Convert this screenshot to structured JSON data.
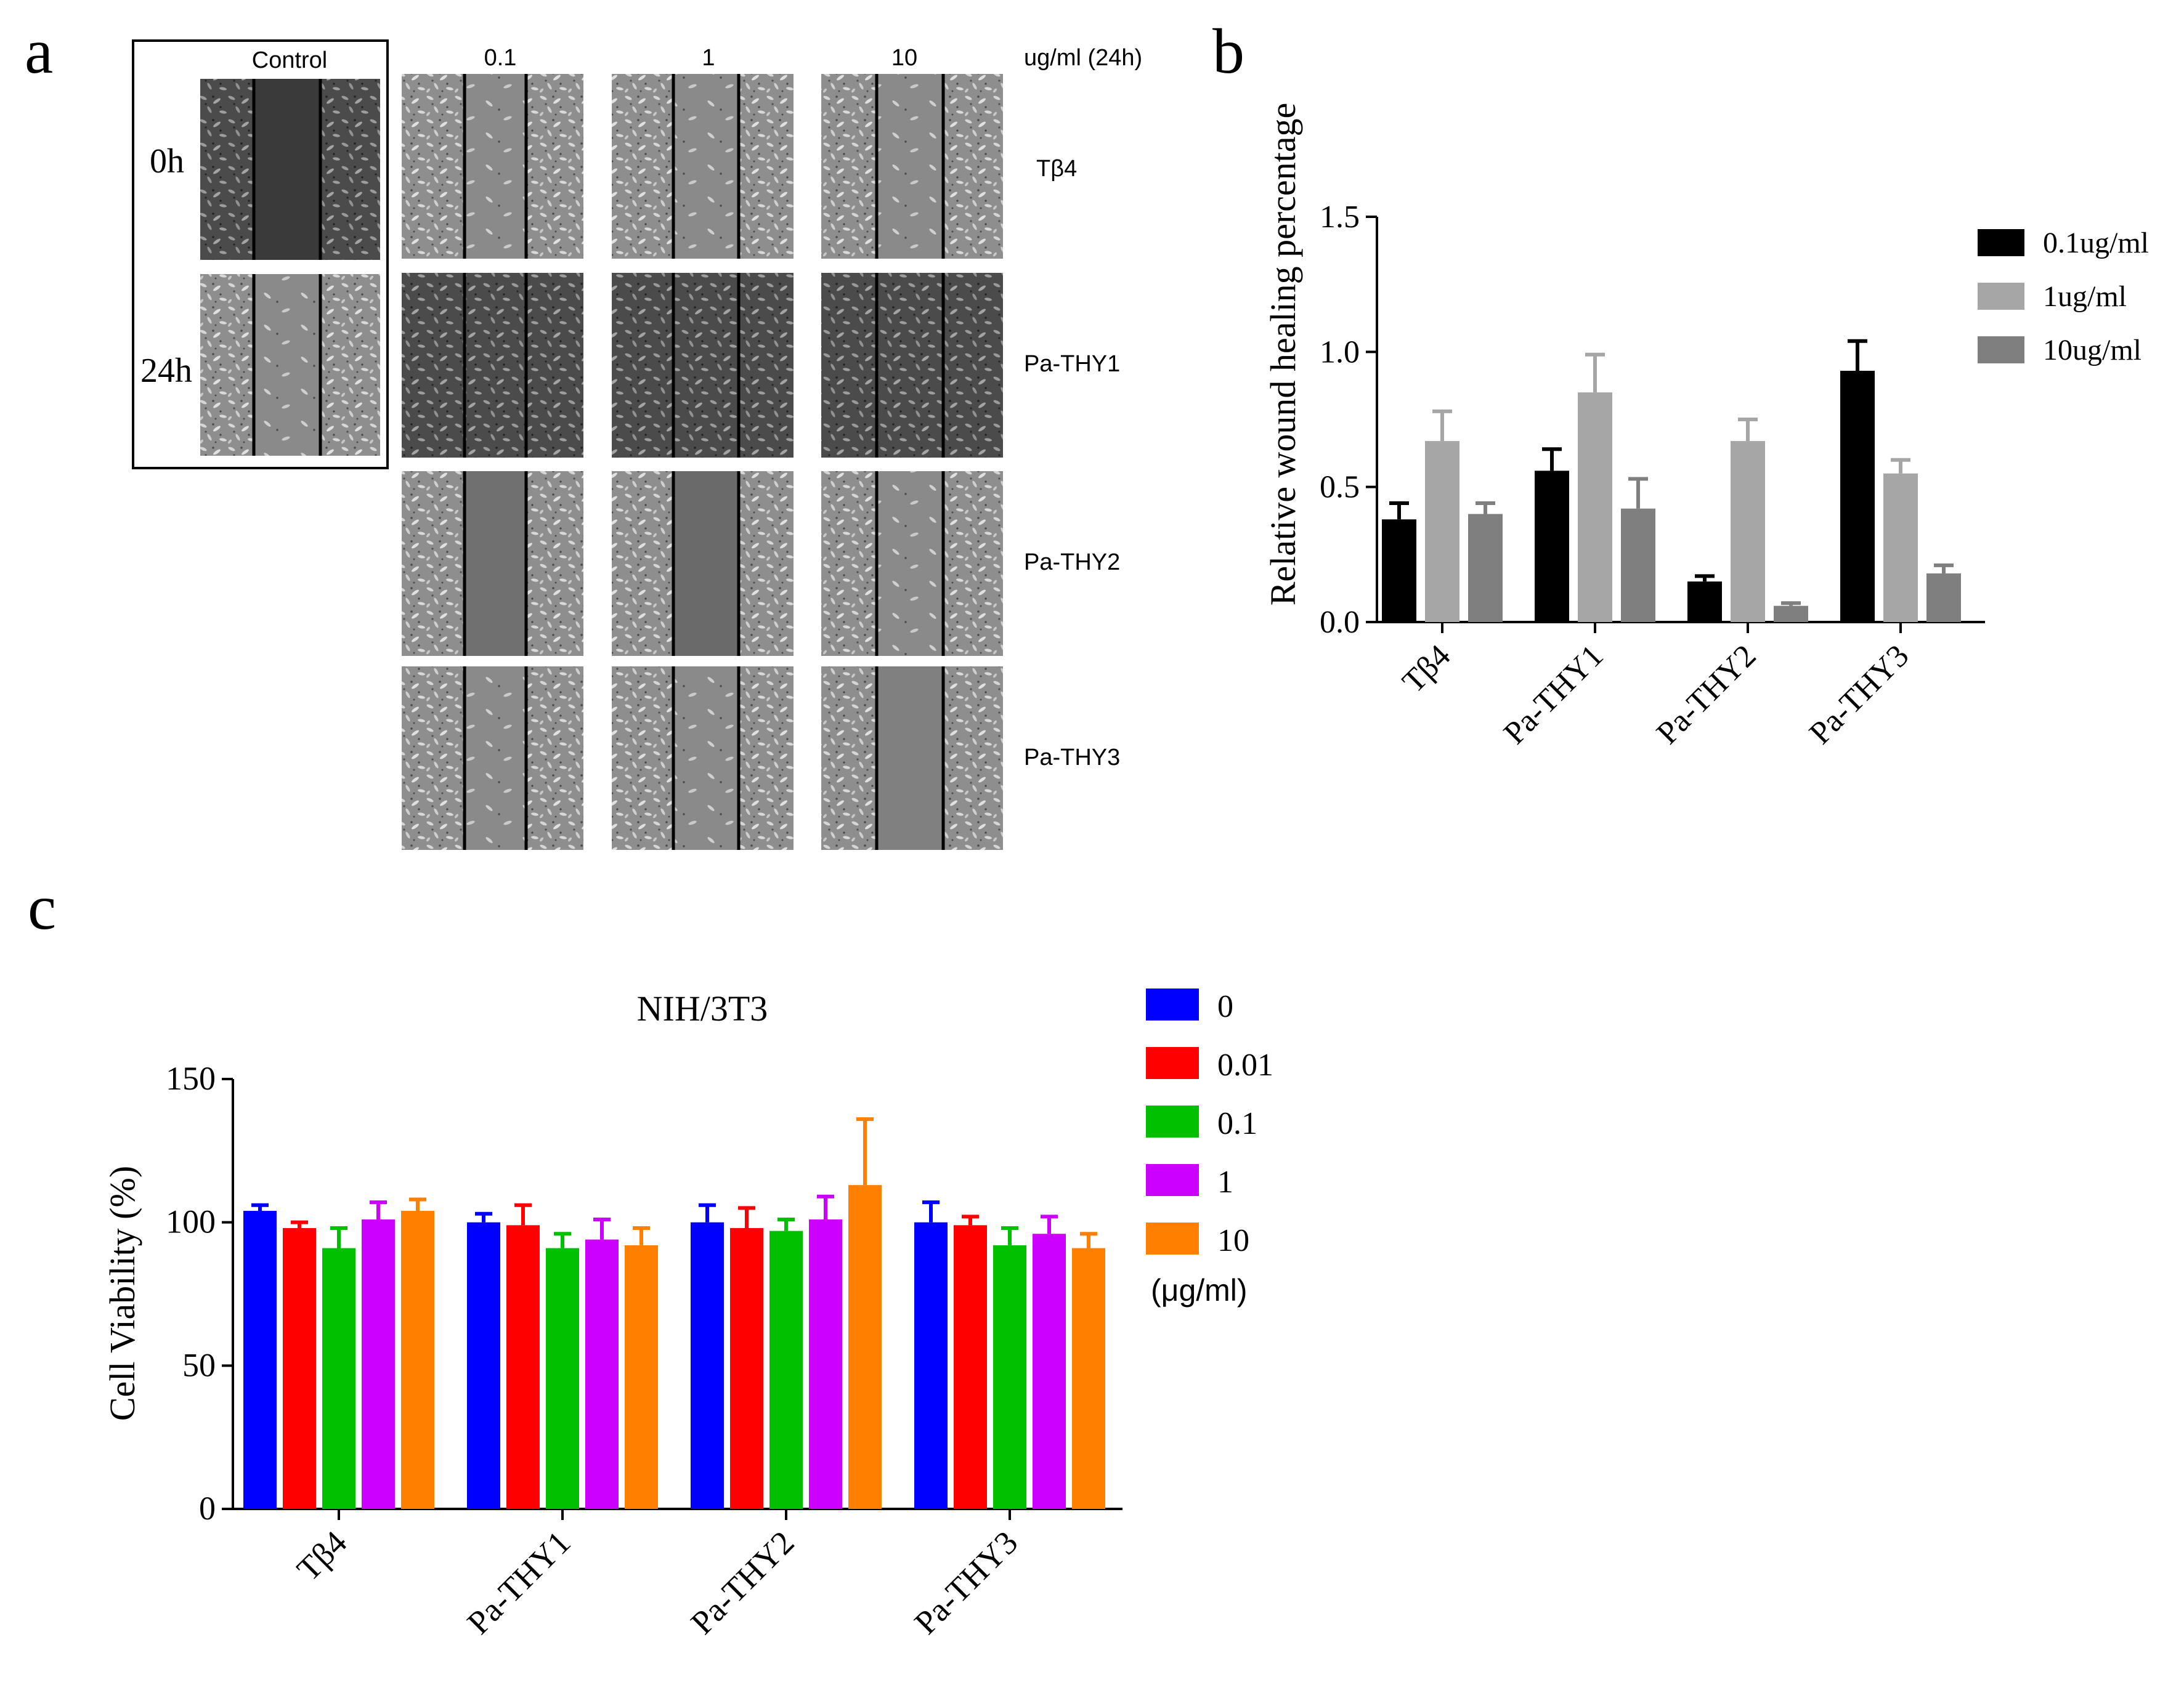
{
  "panel_a": {
    "letter": "a",
    "control_label": "Control",
    "time_labels": [
      "0h",
      "24h"
    ],
    "concentration_headers": [
      "0.1",
      "1",
      "10"
    ],
    "unit_label": "ug/ml (24h)",
    "row_labels": [
      "Tβ4",
      "Pa-THY1",
      "Pa-THY2",
      "Pa-THY3"
    ]
  },
  "panel_b": {
    "letter": "b",
    "chart_data": {
      "type": "bar",
      "title": "",
      "xlabel": "",
      "ylabel": "Relative wound healing percentage",
      "ylim": [
        0,
        1.5
      ],
      "yticks": [
        "0.0",
        "0.5",
        "1.0",
        "1.5"
      ],
      "categories": [
        "Tβ4",
        "Pa-THY1",
        "Pa-THY2",
        "Pa-THY3"
      ],
      "series": [
        {
          "name": "0.1ug/ml",
          "color": "#000000",
          "values": [
            0.38,
            0.56,
            0.15,
            0.93
          ],
          "errors": [
            0.06,
            0.08,
            0.02,
            0.11
          ]
        },
        {
          "name": "1ug/ml",
          "color": "#a6a6a6",
          "values": [
            0.67,
            0.85,
            0.67,
            0.55
          ],
          "errors": [
            0.11,
            0.14,
            0.08,
            0.05
          ]
        },
        {
          "name": "10ug/ml",
          "color": "#7f7f7f",
          "values": [
            0.4,
            0.42,
            0.06,
            0.18
          ],
          "errors": [
            0.04,
            0.11,
            0.01,
            0.03
          ]
        }
      ]
    }
  },
  "panel_c": {
    "letter": "c",
    "chart_data": {
      "type": "bar",
      "title": "NIH/3T3",
      "xlabel": "",
      "ylabel": "Cell Viability (%)",
      "ylim": [
        0,
        150
      ],
      "yticks": [
        "0",
        "50",
        "100",
        "150"
      ],
      "categories": [
        "Tβ4",
        "Pa-THY1",
        "Pa-THY2",
        "Pa-THY3"
      ],
      "legend_unit": "(μg/ml)",
      "series": [
        {
          "name": "0",
          "color": "#0000ff",
          "values": [
            104,
            100,
            100,
            100
          ],
          "errors": [
            2,
            3,
            6,
            7
          ]
        },
        {
          "name": "0.01",
          "color": "#ff0000",
          "values": [
            98,
            99,
            98,
            99
          ],
          "errors": [
            2,
            7,
            7,
            3
          ]
        },
        {
          "name": "0.1",
          "color": "#00c000",
          "values": [
            91,
            91,
            97,
            92
          ],
          "errors": [
            7,
            5,
            4,
            6
          ]
        },
        {
          "name": "1",
          "color": "#cc00ff",
          "values": [
            101,
            94,
            101,
            96
          ],
          "errors": [
            6,
            7,
            8,
            6
          ]
        },
        {
          "name": "10",
          "color": "#ff8000",
          "values": [
            104,
            92,
            113,
            91
          ],
          "errors": [
            4,
            6,
            23,
            5
          ]
        }
      ]
    }
  }
}
